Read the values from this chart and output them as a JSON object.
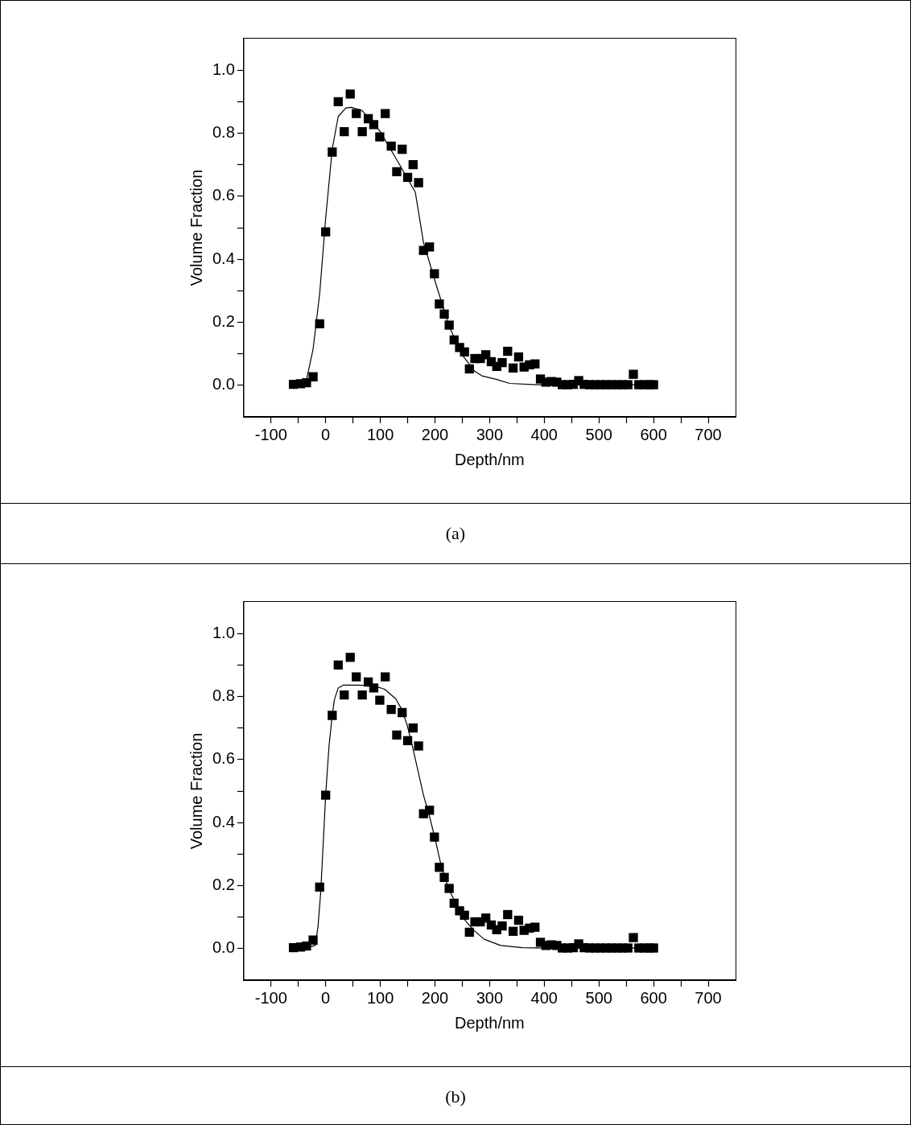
{
  "chart_data": [
    {
      "type": "scatter",
      "xlabel": "Depth/nm",
      "ylabel": "Volume Fraction",
      "annotations": [
        "(a)"
      ],
      "xlim": [
        -150,
        750
      ],
      "ylim": [
        -0.1,
        1.1
      ],
      "xticks": [
        -100,
        {
          "value": -50,
          "label": null
        },
        0,
        {
          "value": 50,
          "label": null
        },
        100,
        {
          "value": 150,
          "label": null
        },
        200,
        {
          "value": 250,
          "label": null
        },
        300,
        {
          "value": 350,
          "label": null
        },
        400,
        {
          "value": 450,
          "label": null
        },
        500,
        {
          "value": 550,
          "label": null
        },
        600,
        {
          "value": 650,
          "label": null
        },
        700
      ],
      "yticks": [
        {
          "value": 0,
          "label": "0.0"
        },
        {
          "value": 0.1,
          "label": null
        },
        0.2,
        {
          "value": 0.3,
          "label": null
        },
        0.4,
        {
          "value": 0.5,
          "label": null
        },
        0.6,
        {
          "value": 0.7,
          "label": null
        },
        0.8,
        {
          "value": 0.9,
          "label": null
        },
        {
          "value": 1,
          "label": "1.0"
        }
      ],
      "series": [
        {
          "marker": "square",
          "color": "#000000",
          "x": [
            -59,
            -46,
            -35,
            -23,
            -11,
            0,
            12,
            23,
            34,
            45,
            56,
            67,
            78,
            88,
            99,
            109,
            120,
            130,
            140,
            150,
            160,
            170,
            179,
            190,
            199,
            208,
            217,
            226,
            235,
            245,
            254,
            263,
            273,
            283,
            293,
            303,
            313,
            323,
            333,
            343,
            353,
            363,
            373,
            383,
            393,
            403,
            413,
            423,
            433,
            443,
            453,
            463,
            473,
            483,
            493,
            503,
            513,
            523,
            533,
            543,
            553,
            563,
            573,
            583,
            593,
            600
          ],
          "values": [
            0.003,
            0.005,
            0.008,
            0.027,
            0.195,
            0.487,
            0.74,
            0.9,
            0.805,
            0.924,
            0.862,
            0.805,
            0.846,
            0.827,
            0.788,
            0.862,
            0.759,
            0.678,
            0.749,
            0.66,
            0.7,
            0.643,
            0.428,
            0.439,
            0.354,
            0.258,
            0.226,
            0.191,
            0.144,
            0.12,
            0.106,
            0.052,
            0.085,
            0.085,
            0.097,
            0.075,
            0.06,
            0.072,
            0.108,
            0.055,
            0.09,
            0.058,
            0.065,
            0.068,
            0.02,
            0.01,
            0.012,
            0.01,
            0.002,
            0.002,
            0.003,
            0.015,
            0.003,
            0.002,
            0.002,
            0.002,
            0.002,
            0.002,
            0.002,
            0.002,
            0.002,
            0.035,
            0.002,
            0.002,
            0.002,
            0.002
          ]
        },
        {
          "type": "line",
          "marker": "none",
          "color": "#000000",
          "x": [
            -60,
            -45,
            -35,
            -23,
            -11,
            0,
            12,
            23,
            37,
            47,
            67,
            98,
            132,
            164,
            179,
            202,
            226,
            249,
            273,
            286,
            312,
            337,
            388,
            600
          ],
          "values": [
            0,
            0.005,
            0.018,
            0.115,
            0.29,
            0.53,
            0.75,
            0.853,
            0.88,
            0.882,
            0.871,
            0.81,
            0.71,
            0.613,
            0.453,
            0.32,
            0.187,
            0.098,
            0.044,
            0.03,
            0.019,
            0.006,
            0.002,
            0.002
          ]
        }
      ]
    },
    {
      "type": "scatter",
      "xlabel": "Depth/nm",
      "ylabel": "Volume Fraction",
      "annotations": [
        "(b)"
      ],
      "xlim": [
        -150,
        750
      ],
      "ylim": [
        -0.1,
        1.1
      ],
      "xticks": [
        -100,
        {
          "value": -50,
          "label": null
        },
        0,
        {
          "value": 50,
          "label": null
        },
        100,
        {
          "value": 150,
          "label": null
        },
        200,
        {
          "value": 250,
          "label": null
        },
        300,
        {
          "value": 350,
          "label": null
        },
        400,
        {
          "value": 450,
          "label": null
        },
        500,
        {
          "value": 550,
          "label": null
        },
        600,
        {
          "value": 650,
          "label": null
        },
        700
      ],
      "yticks": [
        {
          "value": 0,
          "label": "0.0"
        },
        {
          "value": 0.1,
          "label": null
        },
        0.2,
        {
          "value": 0.3,
          "label": null
        },
        0.4,
        {
          "value": 0.5,
          "label": null
        },
        0.6,
        {
          "value": 0.7,
          "label": null
        },
        0.8,
        {
          "value": 0.9,
          "label": null
        },
        {
          "value": 1,
          "label": "1.0"
        }
      ],
      "series": [
        {
          "marker": "square",
          "color": "#000000",
          "x": [
            -59,
            -46,
            -35,
            -23,
            -11,
            0,
            12,
            23,
            34,
            45,
            56,
            67,
            78,
            88,
            99,
            109,
            120,
            130,
            140,
            150,
            160,
            170,
            179,
            190,
            199,
            208,
            217,
            226,
            235,
            245,
            254,
            263,
            273,
            283,
            293,
            303,
            313,
            323,
            333,
            343,
            353,
            363,
            373,
            383,
            393,
            403,
            413,
            423,
            433,
            443,
            453,
            463,
            473,
            483,
            493,
            503,
            513,
            523,
            533,
            543,
            553,
            563,
            573,
            583,
            593,
            600
          ],
          "values": [
            0.003,
            0.005,
            0.008,
            0.027,
            0.195,
            0.487,
            0.74,
            0.9,
            0.805,
            0.924,
            0.862,
            0.805,
            0.846,
            0.827,
            0.788,
            0.862,
            0.759,
            0.678,
            0.749,
            0.66,
            0.7,
            0.643,
            0.428,
            0.439,
            0.354,
            0.258,
            0.226,
            0.191,
            0.144,
            0.12,
            0.106,
            0.052,
            0.085,
            0.085,
            0.097,
            0.075,
            0.06,
            0.072,
            0.108,
            0.055,
            0.09,
            0.058,
            0.065,
            0.068,
            0.02,
            0.01,
            0.012,
            0.01,
            0.002,
            0.002,
            0.003,
            0.015,
            0.003,
            0.002,
            0.002,
            0.002,
            0.002,
            0.002,
            0.002,
            0.002,
            0.002,
            0.035,
            0.002,
            0.002,
            0.002,
            0.002
          ]
        },
        {
          "type": "line",
          "marker": "none",
          "color": "#000000",
          "x": [
            -60,
            -30,
            -19,
            -14,
            -9,
            -4,
            0,
            6,
            12,
            16,
            23,
            32,
            57,
            88,
            108,
            128,
            139,
            149,
            159,
            179,
            190,
            200,
            210,
            220,
            230,
            240,
            250,
            270,
            290,
            320,
            360,
            400,
            600
          ],
          "values": [
            0.002,
            0.005,
            0.01,
            0.07,
            0.18,
            0.35,
            0.487,
            0.64,
            0.74,
            0.79,
            0.827,
            0.836,
            0.836,
            0.834,
            0.823,
            0.793,
            0.76,
            0.71,
            0.64,
            0.487,
            0.42,
            0.35,
            0.274,
            0.214,
            0.172,
            0.138,
            0.1,
            0.06,
            0.03,
            0.01,
            0.003,
            0.002,
            0.002
          ]
        }
      ]
    }
  ]
}
